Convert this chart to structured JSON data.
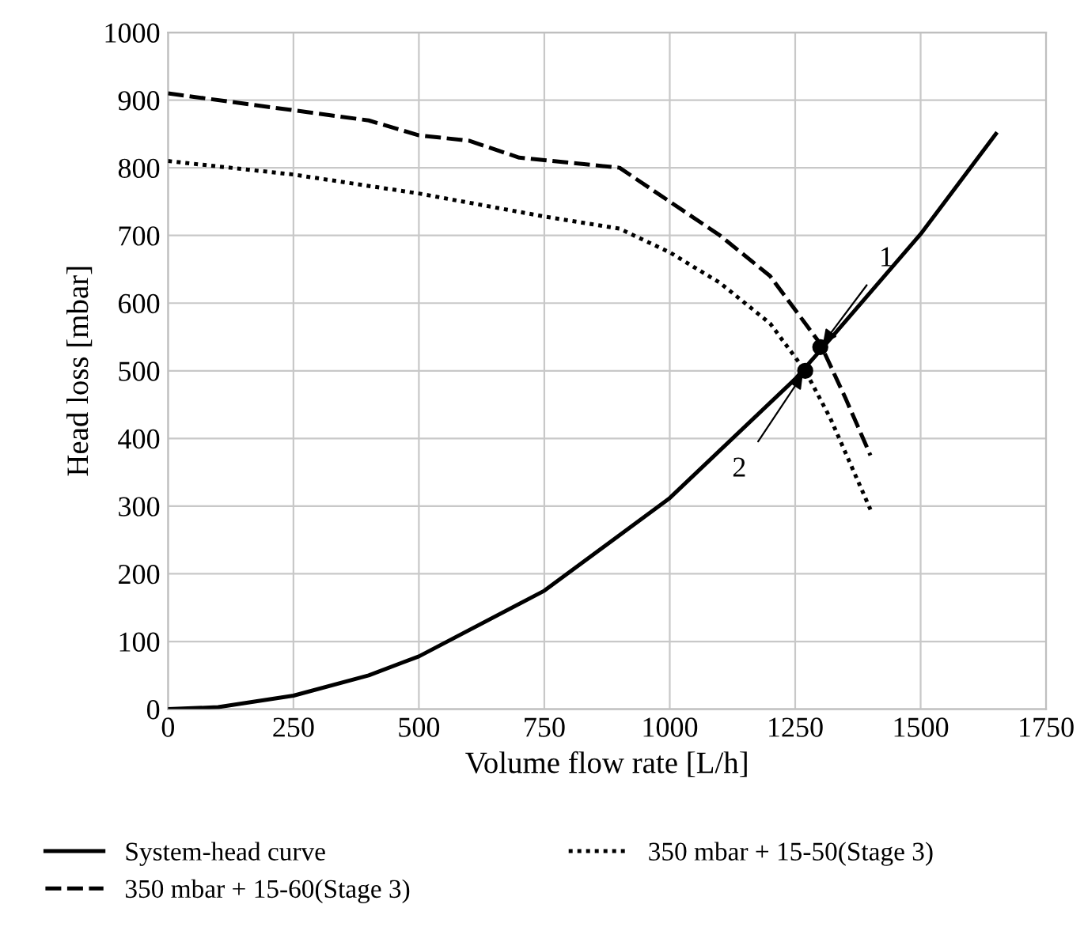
{
  "chart_data": {
    "type": "line",
    "xlabel": "Volume flow rate [L/h]",
    "ylabel": "Head loss [mbar]",
    "xlim": [
      0,
      1750
    ],
    "ylim": [
      0,
      1000
    ],
    "xticks": [
      0,
      250,
      500,
      750,
      1000,
      1250,
      1500,
      1750
    ],
    "yticks": [
      0,
      100,
      200,
      300,
      400,
      500,
      600,
      700,
      800,
      900,
      1000
    ],
    "grid": true,
    "legend": "bottom",
    "marker": "none",
    "series": [
      {
        "name": "System-head curve",
        "color": "#000000",
        "line_style": "solid",
        "x": [
          0,
          100,
          250,
          400,
          500,
          750,
          1000,
          1250,
          1300,
          1500,
          1650
        ],
        "values": [
          0,
          3,
          20,
          50,
          78,
          175,
          312,
          488,
          530,
          702,
          850
        ]
      },
      {
        "name": "350 mbar + 15-50(Stage 3)",
        "color": "#000000",
        "line_style": "dotted",
        "x": [
          0,
          250,
          500,
          750,
          900,
          1000,
          1100,
          1200,
          1270,
          1320,
          1400
        ],
        "values": [
          810,
          790,
          762,
          728,
          710,
          675,
          630,
          570,
          500,
          430,
          295
        ]
      },
      {
        "name": "350 mbar + 15-60(Stage 3)",
        "color": "#000000",
        "line_style": "dashed",
        "x": [
          0,
          250,
          400,
          500,
          600,
          700,
          900,
          1000,
          1100,
          1200,
          1300,
          1350,
          1400
        ],
        "values": [
          910,
          885,
          870,
          848,
          840,
          815,
          800,
          750,
          700,
          640,
          540,
          460,
          375
        ]
      },
      {
        "type": "scatter",
        "marker": "circle",
        "color": "#000000",
        "x": [
          1300,
          1270
        ],
        "values": [
          535,
          500
        ]
      }
    ],
    "annotations": [
      {
        "text": "1",
        "x": 1300,
        "y": 535
      },
      {
        "text": "2",
        "x": 1270,
        "y": 500
      }
    ]
  }
}
